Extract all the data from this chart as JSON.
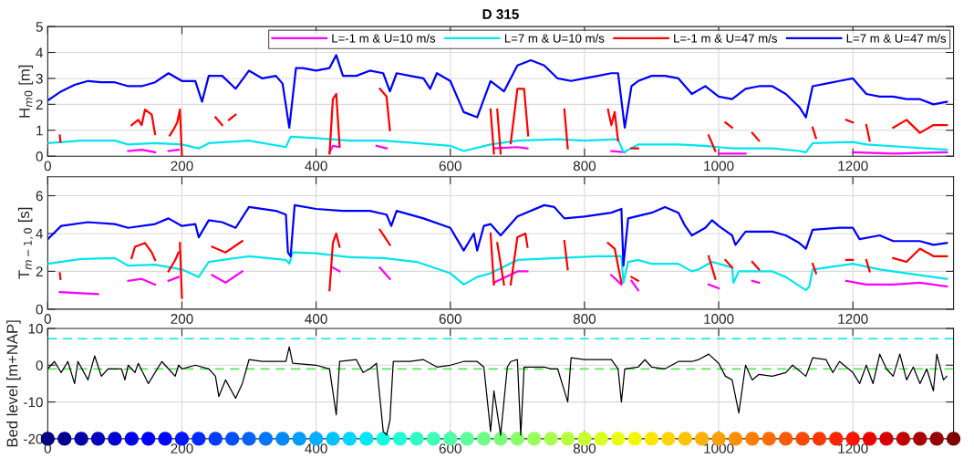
{
  "chart_data": [
    {
      "type": "line",
      "title": "D 315",
      "ylabel": "H$_{m0}$ [m]",
      "xlim": [
        0,
        1350
      ],
      "xticks": [
        0,
        200,
        400,
        600,
        800,
        1000,
        1200
      ],
      "ylim": [
        0,
        5
      ],
      "yticks": [
        0,
        1,
        2,
        3,
        4,
        5
      ],
      "grid": true,
      "legend": "top right",
      "series": [
        {
          "name": "L=-1 m & U=10 m/s",
          "color": "#ff00ff",
          "x": [
            120,
            140,
            160,
            170,
            180,
            195,
            300,
            420,
            425,
            435,
            460,
            490,
            505,
            600,
            665,
            700,
            715,
            800,
            840,
            860,
            930,
            1000,
            1040,
            1120,
            1200,
            1260,
            1340
          ],
          "values": [
            0.2,
            0.25,
            0.15,
            null,
            0.2,
            0.25,
            null,
            0.15,
            0.4,
            0.35,
            null,
            0.4,
            0.3,
            null,
            0.3,
            0.35,
            0.3,
            null,
            0.2,
            0.15,
            null,
            0.1,
            0.1,
            null,
            0.15,
            0.1,
            0.15
          ]
        },
        {
          "name": "L=7 m & U=10 m/s",
          "color": "#00e5ee",
          "x": [
            0,
            50,
            100,
            120,
            160,
            200,
            225,
            240,
            300,
            355,
            362,
            400,
            450,
            500,
            550,
            600,
            620,
            660,
            700,
            760,
            800,
            850,
            858,
            880,
            940,
            980,
            1000,
            1020,
            1040,
            1080,
            1120,
            1130,
            1140,
            1200,
            1220,
            1280,
            1340
          ],
          "values": [
            0.5,
            0.6,
            0.6,
            0.45,
            0.5,
            0.45,
            0.3,
            0.5,
            0.6,
            0.35,
            0.75,
            0.7,
            0.6,
            0.6,
            0.5,
            0.4,
            0.2,
            0.45,
            0.6,
            0.65,
            0.6,
            0.65,
            0.15,
            0.45,
            0.45,
            0.4,
            0.35,
            0.3,
            0.3,
            0.3,
            0.2,
            0.15,
            0.5,
            0.55,
            0.45,
            0.35,
            0.25
          ]
        },
        {
          "name": "L=-1 m & U=47 m/s",
          "color": "#ff0000",
          "x": [
            18,
            19,
            70,
            125,
            135,
            140,
            145,
            155,
            160,
            170,
            182,
            188,
            193,
            197,
            200,
            220,
            250,
            260,
            265,
            270,
            280,
            350,
            420,
            425,
            430,
            435,
            460,
            495,
            505,
            510,
            600,
            660,
            665,
            668,
            670,
            675,
            680,
            690,
            700,
            710,
            716,
            740,
            770,
            775,
            800,
            835,
            840,
            845,
            850,
            860,
            870,
            880,
            930,
            985,
            995,
            1000,
            1010,
            1020,
            1035,
            1050,
            1060,
            1100,
            1140,
            1145,
            1170,
            1190,
            1200,
            1210,
            1220,
            1225,
            1240,
            1260,
            1280,
            1300,
            1320,
            1340
          ],
          "values": [
            0.8,
            0.55,
            null,
            1.2,
            1.4,
            1.2,
            1.8,
            1.6,
            0.85,
            null,
            0.8,
            1.05,
            1.3,
            1.8,
            0.0,
            null,
            1.5,
            1.2,
            null,
            1.4,
            1.6,
            null,
            0.1,
            2.2,
            2.4,
            0.4,
            null,
            2.6,
            2.3,
            1.0,
            null,
            1.8,
            0.1,
            null,
            1.8,
            0.1,
            null,
            0.5,
            2.6,
            2.6,
            0.8,
            null,
            1.8,
            0.3,
            null,
            1.8,
            1.2,
            1.7,
            0.6,
            null,
            0.3,
            0.3,
            null,
            0.8,
            0.2,
            null,
            1.3,
            1.1,
            null,
            0.9,
            0.6,
            null,
            1.1,
            0.7,
            null,
            1.4,
            1.3,
            null,
            1.2,
            0.6,
            null,
            1.1,
            1.4,
            0.9,
            1.2,
            1.2
          ]
        },
        {
          "name": "L=7 m & U=47 m/s",
          "color": "#0000ff",
          "x": [
            0,
            20,
            40,
            60,
            80,
            100,
            120,
            140,
            160,
            180,
            200,
            220,
            230,
            240,
            260,
            280,
            300,
            320,
            340,
            350,
            360,
            370,
            380,
            400,
            420,
            430,
            440,
            460,
            480,
            500,
            510,
            520,
            540,
            560,
            570,
            580,
            600,
            620,
            640,
            660,
            680,
            700,
            720,
            740,
            760,
            780,
            800,
            820,
            840,
            850,
            860,
            870,
            880,
            900,
            920,
            940,
            960,
            980,
            1000,
            1020,
            1040,
            1060,
            1080,
            1100,
            1120,
            1130,
            1140,
            1160,
            1180,
            1200,
            1220,
            1240,
            1260,
            1280,
            1300,
            1320,
            1340
          ],
          "values": [
            2.15,
            2.5,
            2.75,
            2.9,
            2.85,
            2.85,
            2.7,
            2.7,
            2.85,
            3.2,
            2.9,
            2.9,
            2.1,
            3.1,
            3.1,
            2.6,
            3.3,
            3.0,
            3.1,
            2.8,
            1.1,
            3.4,
            3.4,
            3.3,
            3.4,
            3.9,
            3.1,
            3.1,
            3.3,
            3.2,
            2.5,
            3.2,
            3.1,
            3.0,
            2.6,
            3.2,
            2.9,
            1.7,
            1.5,
            2.9,
            2.5,
            3.5,
            3.7,
            3.5,
            3.0,
            2.9,
            3.0,
            3.1,
            3.2,
            3.2,
            1.1,
            2.7,
            2.9,
            3.1,
            3.1,
            3.0,
            2.4,
            2.7,
            2.3,
            2.2,
            2.6,
            2.7,
            2.7,
            2.4,
            1.9,
            1.5,
            2.7,
            2.8,
            2.9,
            3.0,
            2.4,
            2.3,
            2.3,
            2.2,
            2.2,
            2.0,
            2.1
          ]
        }
      ]
    },
    {
      "type": "line",
      "ylabel": "T$_{m−1,0}$ [s]",
      "xlim": [
        0,
        1350
      ],
      "xticks": [
        0,
        200,
        400,
        600,
        800,
        1000,
        1200
      ],
      "ylim": [
        0,
        7
      ],
      "yticks": [
        0,
        2,
        4,
        6
      ],
      "grid": true,
      "series": [
        {
          "color": "#ff00ff",
          "x": [
            18,
            75,
            100,
            120,
            140,
            160,
            170,
            180,
            195,
            220,
            245,
            265,
            290,
            350,
            425,
            435,
            460,
            495,
            510,
            600,
            665,
            700,
            715,
            800,
            840,
            855,
            862,
            870,
            880,
            930,
            985,
            1000,
            1030,
            1050,
            1060,
            1120,
            1190,
            1220,
            1260,
            1300,
            1340
          ],
          "values": [
            0.9,
            0.8,
            null,
            1.5,
            1.6,
            1.3,
            null,
            1.5,
            1.7,
            null,
            1.8,
            1.4,
            2.0,
            null,
            2.2,
            2.0,
            null,
            2.2,
            1.6,
            null,
            1.4,
            2.0,
            2.0,
            null,
            1.8,
            1.3,
            null,
            1.5,
            1.0,
            null,
            1.3,
            1.1,
            null,
            1.5,
            1.4,
            null,
            1.5,
            1.3,
            1.3,
            1.4,
            1.2
          ]
        },
        {
          "color": "#00e5ee",
          "x": [
            0,
            50,
            100,
            120,
            160,
            200,
            225,
            240,
            300,
            355,
            360,
            365,
            400,
            450,
            500,
            550,
            600,
            620,
            640,
            660,
            700,
            760,
            820,
            855,
            858,
            865,
            880,
            900,
            940,
            960,
            970,
            990,
            1010,
            1020,
            1022,
            1030,
            1080,
            1100,
            1130,
            1135,
            1140,
            1200,
            1240,
            1300,
            1340
          ],
          "values": [
            2.4,
            2.65,
            2.7,
            2.3,
            2.35,
            2.1,
            1.7,
            2.5,
            2.8,
            2.6,
            2.4,
            3.0,
            2.95,
            2.75,
            2.7,
            2.5,
            1.9,
            1.3,
            1.7,
            1.9,
            2.6,
            2.7,
            2.8,
            2.8,
            1.4,
            2.5,
            2.6,
            2.4,
            2.4,
            2.0,
            2.1,
            2.5,
            2.3,
            2.2,
            1.4,
            2.0,
            2.0,
            1.7,
            1.0,
            1.2,
            2.1,
            2.4,
            2.1,
            1.8,
            1.6
          ]
        },
        {
          "color": "#ff0000",
          "x": [
            18,
            19,
            70,
            125,
            130,
            145,
            155,
            160,
            170,
            180,
            190,
            195,
            196,
            197,
            200,
            220,
            245,
            265,
            290,
            350,
            420,
            425,
            430,
            435,
            460,
            495,
            510,
            600,
            660,
            665,
            668,
            670,
            680,
            685,
            690,
            700,
            712,
            715,
            740,
            770,
            775,
            800,
            835,
            845,
            855,
            862,
            870,
            880,
            930,
            985,
            995,
            1000,
            1010,
            1020,
            1035,
            1050,
            1060,
            1100,
            1140,
            1145,
            1170,
            1190,
            1200,
            1210,
            1220,
            1225,
            1240,
            1260,
            1280,
            1300,
            1320,
            1340
          ],
          "values": [
            1.9,
            1.6,
            null,
            2.7,
            3.3,
            3.5,
            3.0,
            2.6,
            null,
            2.0,
            2.6,
            3.0,
            null,
            3.5,
            0.6,
            null,
            3.3,
            3.0,
            3.6,
            null,
            1.0,
            3.5,
            4.0,
            3.3,
            null,
            4.2,
            3.4,
            null,
            4.0,
            1.3,
            null,
            3.5,
            1.3,
            null,
            1.3,
            3.8,
            4.0,
            3.3,
            null,
            3.6,
            2.1,
            null,
            3.5,
            3.2,
            1.4,
            null,
            1.7,
            1.5,
            null,
            2.8,
            1.6,
            null,
            2.6,
            2.2,
            null,
            2.5,
            2.1,
            null,
            2.4,
            1.9,
            null,
            2.6,
            2.6,
            null,
            2.6,
            2.0,
            null,
            2.7,
            2.5,
            3.2,
            2.8,
            2.8
          ]
        },
        {
          "color": "#0000ff",
          "x": [
            0,
            20,
            60,
            100,
            120,
            160,
            180,
            200,
            220,
            225,
            240,
            260,
            280,
            300,
            340,
            355,
            358,
            362,
            368,
            400,
            440,
            480,
            505,
            512,
            520,
            560,
            600,
            620,
            635,
            640,
            650,
            660,
            675,
            700,
            740,
            755,
            770,
            800,
            840,
            855,
            858,
            865,
            900,
            920,
            940,
            950,
            960,
            980,
            990,
            1000,
            1020,
            1025,
            1040,
            1080,
            1100,
            1120,
            1130,
            1140,
            1180,
            1200,
            1210,
            1240,
            1260,
            1300,
            1320,
            1340
          ],
          "values": [
            3.7,
            4.4,
            4.6,
            4.5,
            4.3,
            4.5,
            4.8,
            4.4,
            4.5,
            3.8,
            4.7,
            4.6,
            4.3,
            5.4,
            5.2,
            5.0,
            3.0,
            2.8,
            5.5,
            5.3,
            5.2,
            5.2,
            5.0,
            4.4,
            5.2,
            4.8,
            4.3,
            3.1,
            4.0,
            3.1,
            4.4,
            4.5,
            3.9,
            4.9,
            5.5,
            5.4,
            4.8,
            4.9,
            5.1,
            5.3,
            2.3,
            4.8,
            5.1,
            5.4,
            5.1,
            4.4,
            3.9,
            4.3,
            4.7,
            4.4,
            3.9,
            3.4,
            4.1,
            4.1,
            3.9,
            3.5,
            3.2,
            4.2,
            4.3,
            4.3,
            3.7,
            3.9,
            3.6,
            3.6,
            3.4,
            3.5
          ]
        }
      ]
    },
    {
      "type": "line",
      "ylabel": "Bed level [m+NAP]",
      "xlim": [
        0,
        1350
      ],
      "xticks": [
        0,
        200,
        400,
        600,
        800,
        1000,
        1200
      ],
      "ylim": [
        -20,
        10
      ],
      "yticks": [
        -20,
        -10,
        0,
        10
      ],
      "grid": true,
      "ref_lines": [
        {
          "axis": "y",
          "value": 7.2,
          "color": "#00e5ee",
          "line_style": "dashed"
        },
        {
          "axis": "y",
          "value": -1,
          "color": "#55e855",
          "line_style": "dashed"
        }
      ],
      "series": [
        {
          "color": "#000000",
          "x": [
            0,
            10,
            20,
            30,
            40,
            45,
            60,
            70,
            80,
            90,
            110,
            115,
            120,
            130,
            135,
            150,
            170,
            180,
            190,
            195,
            200,
            220,
            240,
            250,
            255,
            265,
            280,
            290,
            300,
            320,
            340,
            355,
            360,
            365,
            400,
            420,
            430,
            435,
            460,
            470,
            480,
            490,
            500,
            505,
            510,
            515,
            540,
            560,
            580,
            600,
            620,
            640,
            650,
            660,
            665,
            675,
            685,
            690,
            700,
            705,
            710,
            740,
            750,
            760,
            775,
            780,
            800,
            840,
            850,
            855,
            860,
            880,
            890,
            900,
            920,
            940,
            960,
            970,
            985,
            1000,
            1010,
            1020,
            1030,
            1040,
            1050,
            1060,
            1080,
            1100,
            1110,
            1130,
            1140,
            1160,
            1170,
            1180,
            1200,
            1210,
            1220,
            1230,
            1240,
            1250,
            1260,
            1270,
            1280,
            1290,
            1300,
            1310,
            1320,
            1325,
            1335,
            1340
          ],
          "values": [
            -1,
            1,
            -2,
            1,
            -5,
            1,
            -4,
            2.5,
            -3,
            -1,
            -1,
            -4,
            0,
            -2,
            0.5,
            -5,
            1,
            -1,
            -3,
            0,
            -1,
            0,
            -1,
            -3,
            -8.5,
            -4,
            -9,
            -5,
            1.5,
            1,
            1,
            1,
            5,
            0.5,
            0,
            -1,
            -13.5,
            1,
            1.5,
            -2,
            -1,
            0.5,
            -18,
            -19,
            -15,
            1,
            1,
            1.5,
            -0.5,
            0,
            1,
            1,
            -0.5,
            -18,
            -7,
            -19,
            -0.5,
            1,
            1.5,
            -19,
            -0.5,
            -0.5,
            -1,
            -1,
            -10,
            2,
            1.5,
            1.5,
            -1,
            -10,
            -1,
            -0.5,
            1.5,
            -0.5,
            -1,
            1,
            1,
            1.5,
            3,
            0.5,
            -3,
            -4,
            -13,
            0,
            -4,
            -2.5,
            -3,
            -2,
            0,
            -3,
            2,
            1.5,
            -2,
            1,
            -2,
            -5,
            0,
            -5,
            3,
            -1,
            -3,
            3,
            -4,
            -0.5,
            -5,
            -1,
            -7,
            3,
            -4,
            -3
          ]
        },
        {
          "type": "scatter",
          "marker": "circle",
          "x": [
            0,
            25,
            50,
            75,
            100,
            125,
            150,
            175,
            200,
            225,
            250,
            275,
            300,
            325,
            350,
            375,
            400,
            425,
            450,
            475,
            500,
            525,
            550,
            575,
            600,
            625,
            650,
            675,
            700,
            725,
            750,
            775,
            800,
            825,
            850,
            875,
            900,
            925,
            950,
            975,
            1000,
            1025,
            1050,
            1075,
            1100,
            1125,
            1150,
            1175,
            1200,
            1225,
            1250,
            1275,
            1300,
            1325,
            1350
          ],
          "values": [
            -20,
            -20,
            -20,
            -20,
            -20,
            -20,
            -20,
            -20,
            -20,
            -20,
            -20,
            -20,
            -20,
            -20,
            -20,
            -20,
            -20,
            -20,
            -20,
            -20,
            -20,
            -20,
            -20,
            -20,
            -20,
            -20,
            -20,
            -20,
            -20,
            -20,
            -20,
            -20,
            -20,
            -20,
            -20,
            -20,
            -20,
            -20,
            -20,
            -20,
            -20,
            -20,
            -20,
            -20,
            -20,
            -20,
            -20,
            -20,
            -20,
            -20,
            -20,
            -20,
            -20,
            -20,
            -20
          ],
          "colors": [
            "#000080",
            "#000095",
            "#0000aa",
            "#0000c0",
            "#0000d5",
            "#0000eb",
            "#0000ff",
            "#0005ff",
            "#0018ff",
            "#002aff",
            "#003dff",
            "#0050ff",
            "#0063ff",
            "#0076ff",
            "#0089ff",
            "#009cff",
            "#00aeff",
            "#00c2ff",
            "#00d4ff",
            "#02e7f5",
            "#11fae6",
            "#20ffd7",
            "#2fffc7",
            "#3effb8",
            "#4effa8",
            "#5dff9a",
            "#6cff8a",
            "#7bff7b",
            "#8aff6c",
            "#9aff5d",
            "#a9ff4e",
            "#b8ff3e",
            "#c7ff2f",
            "#d7ff20",
            "#e6ff11",
            "#f5f702",
            "#ffe600",
            "#ffd400",
            "#ffc300",
            "#ffb100",
            "#ffa000",
            "#ff8e00",
            "#ff7d00",
            "#ff6b00",
            "#ff5a00",
            "#ff4800",
            "#ff3700",
            "#ff2500",
            "#ff1400",
            "#eb0300",
            "#d50000",
            "#c00000",
            "#aa0000",
            "#950000",
            "#800000"
          ]
        }
      ]
    }
  ]
}
